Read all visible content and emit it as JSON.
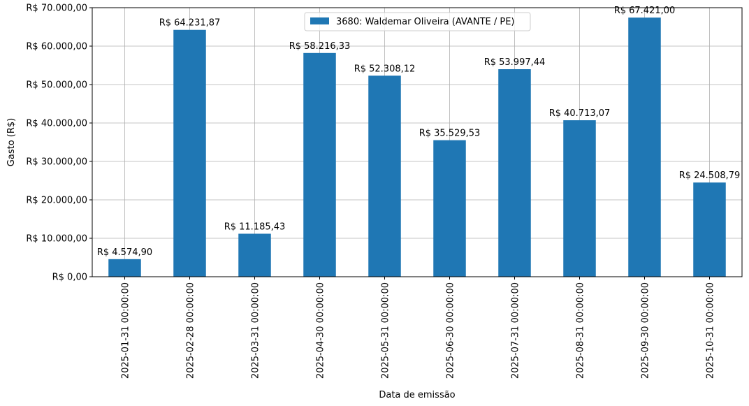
{
  "chart_data": {
    "type": "bar",
    "categories": [
      "2025-01-31 00:00:00",
      "2025-02-28 00:00:00",
      "2025-03-31 00:00:00",
      "2025-04-30 00:00:00",
      "2025-05-31 00:00:00",
      "2025-06-30 00:00:00",
      "2025-07-31 00:00:00",
      "2025-08-31 00:00:00",
      "2025-09-30 00:00:00",
      "2025-10-31 00:00:00"
    ],
    "series": [
      {
        "name": "3680: Waldemar Oliveira (AVANTE / PE)",
        "values": [
          4574.9,
          64231.87,
          11185.43,
          58216.33,
          52308.12,
          35529.53,
          53997.44,
          40713.07,
          67421.0,
          24508.79
        ],
        "data_labels": [
          "R$ 4.574,90",
          "R$ 64.231,87",
          "R$ 11.185,43",
          "R$ 58.216,33",
          "R$ 52.308,12",
          "R$ 35.529,53",
          "R$ 53.997,44",
          "R$ 40.713,07",
          "R$ 67.421,00",
          "R$ 24.508,79"
        ],
        "color": "#1f77b4"
      }
    ],
    "title": "",
    "xlabel": "Data de emissão",
    "ylabel": "Gasto (R$)",
    "ylim": [
      0,
      70000
    ],
    "yticks": [
      0,
      10000,
      20000,
      30000,
      40000,
      50000,
      60000,
      70000
    ],
    "ytick_labels": [
      "R$ 0,00",
      "R$ 10.000,00",
      "R$ 20.000,00",
      "R$ 30.000,00",
      "R$ 40.000,00",
      "R$ 50.000,00",
      "R$ 60.000,00",
      "R$ 70.000,00"
    ],
    "grid": true,
    "legend_position": "top-center"
  }
}
